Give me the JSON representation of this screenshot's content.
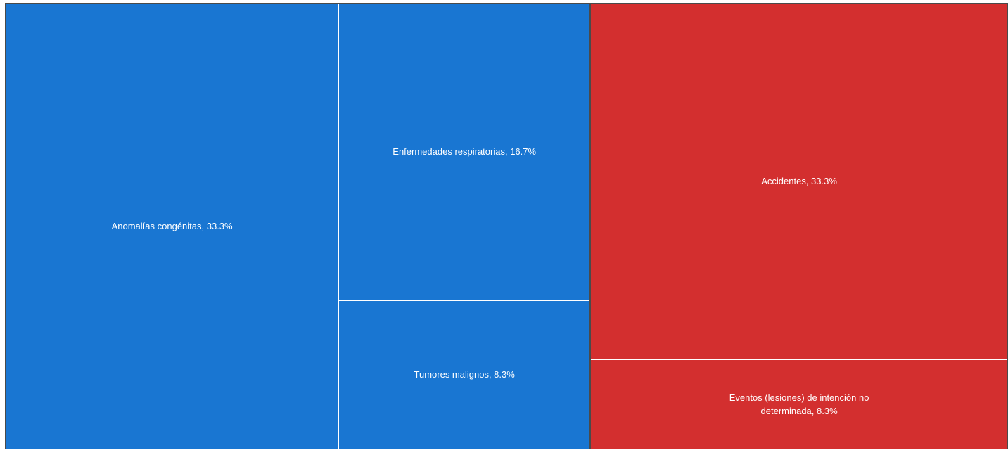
{
  "chart_data": {
    "type": "treemap",
    "series": [
      {
        "color": "#1976d2",
        "values": [
          33.3,
          16.7,
          8.3
        ],
        "value_labels": [
          "Anomalías congénitas, 33.3%",
          "Enfermedades respiratorias, 16.7%",
          "Tumores malignos, 8.3%"
        ]
      },
      {
        "color": "#d32f2f",
        "values": [
          33.3,
          8.3
        ],
        "value_labels": [
          "Accidentes, 33.3%",
          "Eventos (lesiones) de intención no determinada, 8.3%"
        ]
      }
    ]
  }
}
